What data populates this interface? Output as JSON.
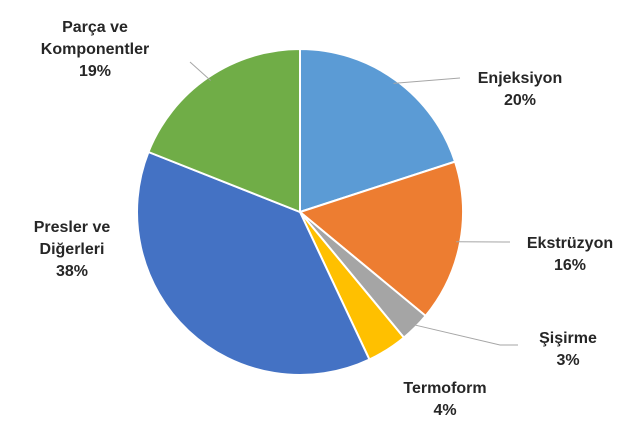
{
  "chart_data": {
    "type": "pie",
    "categories": [
      "Enjeksiyon",
      "Ekstrüzyon",
      "Şişirme",
      "Termoform",
      "Presler ve Diğerleri",
      "Parça ve Komponentler"
    ],
    "values": [
      20,
      16,
      3,
      4,
      38,
      19
    ],
    "value_labels": [
      "20%",
      "16%",
      "3%",
      "4%",
      "38%",
      "19%"
    ],
    "colors": [
      "#5b9bd5",
      "#ed7d31",
      "#a5a5a5",
      "#ffc000",
      "#4472c4",
      "#70ad47"
    ]
  }
}
